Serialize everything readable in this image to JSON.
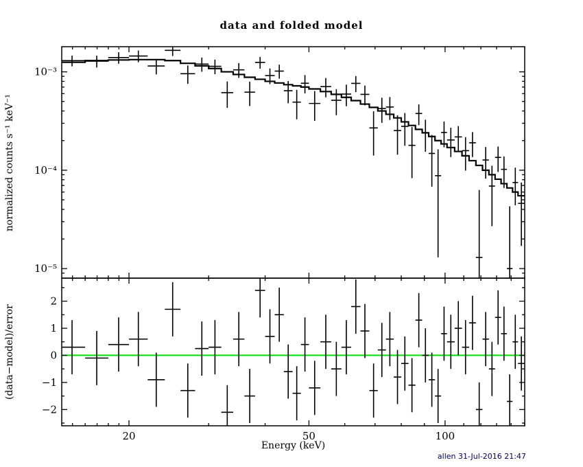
{
  "footer": "allen 31-Jul-2016 21:47",
  "chart_data": {
    "type": "scatter",
    "subtype": "spectrum-with-step-model-and-residuals",
    "title": "data and folded model",
    "xlabel": "Energy (keV)",
    "xscale": "log",
    "xlim": [
      14.2,
      150
    ],
    "xticks": {
      "major": [
        20,
        50,
        100
      ],
      "labels": [
        "20",
        "50",
        "100"
      ],
      "minor": [
        15,
        16,
        17,
        18,
        19,
        30,
        40,
        60,
        70,
        80,
        90,
        110,
        120,
        130,
        140,
        150
      ]
    },
    "colors": {
      "data": "#000000",
      "model": "#000000",
      "zero_line": "#00dd00",
      "background": "#ffffff",
      "frame": "#000000"
    },
    "top_panel": {
      "ylabel": "normalized counts s⁻¹ keV⁻¹",
      "yscale": "log",
      "ylim": [
        8e-06,
        0.0018
      ],
      "yticks": {
        "major": [
          1e-05,
          0.0001,
          0.001
        ],
        "labels": [
          "10⁻⁵",
          "10⁻⁴",
          "10⁻³"
        ]
      },
      "bin_edges_kev": [
        14,
        16,
        18,
        20,
        22,
        24,
        26,
        28,
        30,
        32,
        34,
        36,
        38,
        40,
        42,
        44,
        46,
        48,
        50,
        53,
        56,
        59,
        62,
        65,
        68,
        71,
        74,
        77,
        80,
        83,
        86,
        89,
        92,
        95,
        98,
        101,
        105,
        109,
        113,
        117,
        121,
        125,
        129,
        133,
        137,
        141,
        145,
        150
      ],
      "model_counts": [
        0.00125,
        0.0013,
        0.00132,
        0.00133,
        0.00133,
        0.0013,
        0.00122,
        0.00115,
        0.00108,
        0.001,
        0.00094,
        0.00088,
        0.00084,
        0.0008,
        0.00077,
        0.00074,
        0.00072,
        0.0007,
        0.00067,
        0.00063,
        0.00059,
        0.00055,
        0.00051,
        0.00047,
        0.000435,
        0.0004,
        0.00037,
        0.00034,
        0.00031,
        0.000285,
        0.00026,
        0.00024,
        0.00022,
        0.0002,
        0.000185,
        0.00017,
        0.000155,
        0.00014,
        0.000125,
        0.000112,
        0.0001,
        9e-05,
        8.1e-05,
        7.3e-05,
        6.6e-05,
        6e-05,
        5.5e-05
      ],
      "data_counts": [
        0.001299,
        0.001282,
        0.001395,
        0.001448,
        0.001146,
        0.001654,
        0.000957,
        0.001199,
        0.001138,
        0.000614,
        0.001047,
        0.000621,
        0.001247,
        0.000916,
        0.001017,
        0.000642,
        0.000492,
        0.000765,
        0.000477,
        0.000708,
        0.000514,
        0.000594,
        0.000763,
        0.00059,
        0.000269,
        0.000424,
        0.000439,
        0.000253,
        0.000279,
        0.000179,
        0.000377,
        0.00024,
        0.000148,
        8.8e-05,
        0.000242,
        0.000203,
        0.000218,
        0.000158,
        0.00019,
        1.3e-05,
        0.000127,
        6.9e-05,
        0.000135,
        0.000102,
        1e-05,
        7.5e-05,
        4.6e-05
      ],
      "data_err": [
        0.000163,
        0.000177,
        0.000187,
        0.000197,
        0.000205,
        0.000208,
        0.000203,
        0.000198,
        0.000192,
        0.000184,
        0.000179,
        0.000172,
        0.00017,
        0.000166,
        0.000165,
        0.000163,
        0.000163,
        0.000162,
        0.00016,
        0.000157,
        0.000152,
        0.000147,
        0.000141,
        0.000134,
        0.000128,
        0.000121,
        0.000115,
        0.000109,
        0.000102,
        9.6e-05,
        9e-05,
        8.6e-05,
        8e-05,
        7.5e-05,
        7.1e-05,
        6.7e-05,
        6.3e-05,
        5.9e-05,
        5.4e-05,
        5e-05,
        4.5e-05,
        4.2e-05,
        3.9e-05,
        3.6e-05,
        3.3e-05,
        3.1e-05,
        2.9e-05
      ]
    },
    "bottom_panel": {
      "ylabel": "(data−model)/error",
      "yscale": "linear",
      "ylim": [
        -2.6,
        2.85
      ],
      "yticks": {
        "major": [
          -2,
          -1,
          0,
          1,
          2
        ],
        "labels": [
          "−2",
          "−1",
          "0",
          "1",
          "2"
        ],
        "minor": [
          -2.5,
          -1.5,
          -0.5,
          0.5,
          1.5,
          2.5
        ]
      },
      "residuals": [
        0.3,
        -0.1,
        0.4,
        0.6,
        -0.9,
        1.7,
        -1.3,
        0.25,
        0.3,
        -2.1,
        0.6,
        -1.5,
        2.4,
        0.7,
        1.5,
        -0.6,
        -1.4,
        0.4,
        -1.2,
        0.5,
        -0.5,
        0.3,
        1.8,
        0.9,
        -1.3,
        0.2,
        0.6,
        -0.8,
        -0.3,
        -1.1,
        1.3,
        0.0,
        -0.9,
        -1.5,
        0.8,
        0.5,
        1.0,
        0.3,
        1.2,
        -2.0,
        0.6,
        -0.5,
        1.4,
        0.8,
        -1.7,
        0.5,
        -0.3
      ],
      "residual_err": 1,
      "zero_line_value": 0
    }
  }
}
